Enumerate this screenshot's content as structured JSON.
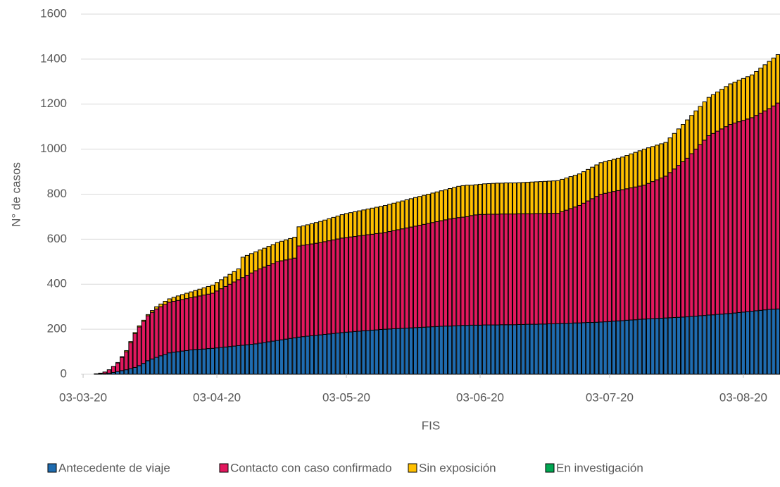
{
  "chart_data": {
    "type": "stacked_bar",
    "xlabel": "FIS",
    "ylabel": "N° de casos",
    "categories": [
      "03-03-20",
      null,
      null,
      null,
      null,
      null,
      null,
      null,
      null,
      null,
      null,
      null,
      null,
      null,
      null,
      null,
      null,
      null,
      null,
      null,
      null,
      null,
      null,
      null,
      null,
      null,
      null,
      null,
      null,
      null,
      null,
      "03-04-20",
      null,
      null,
      null,
      null,
      null,
      null,
      null,
      null,
      null,
      null,
      null,
      null,
      null,
      null,
      null,
      null,
      null,
      null,
      null,
      null,
      null,
      null,
      null,
      null,
      null,
      null,
      null,
      null,
      null,
      "03-05-20",
      null,
      null,
      null,
      null,
      null,
      null,
      null,
      null,
      null,
      null,
      null,
      null,
      null,
      null,
      null,
      null,
      null,
      null,
      null,
      null,
      null,
      null,
      null,
      null,
      null,
      null,
      null,
      null,
      null,
      null,
      "03-06-20",
      null,
      null,
      null,
      null,
      null,
      null,
      null,
      null,
      null,
      null,
      null,
      null,
      null,
      null,
      null,
      null,
      null,
      null,
      null,
      null,
      null,
      null,
      null,
      null,
      null,
      null,
      null,
      null,
      null,
      "03-07-20",
      null,
      null,
      null,
      null,
      null,
      null,
      null,
      null,
      null,
      null,
      null,
      null,
      null,
      null,
      null,
      null,
      null,
      null,
      null,
      null,
      null,
      null,
      null,
      null,
      null,
      null,
      null,
      null,
      null,
      null,
      "03-08-20",
      null,
      null,
      null,
      null,
      null,
      null,
      null,
      null
    ],
    "series": [
      {
        "name": "Antecedente de viaje",
        "color": "#1f6cb0",
        "values": [
          0,
          0,
          0,
          1,
          2,
          3,
          5,
          8,
          12,
          16,
          20,
          25,
          30,
          38,
          48,
          60,
          68,
          75,
          82,
          88,
          95,
          98,
          100,
          103,
          105,
          108,
          110,
          111,
          112,
          114,
          115,
          117,
          119,
          121,
          123,
          125,
          127,
          129,
          131,
          133,
          135,
          138,
          141,
          144,
          147,
          150,
          153,
          156,
          159,
          162,
          165,
          167,
          169,
          171,
          173,
          175,
          177,
          179,
          181,
          183,
          185,
          187,
          188,
          190,
          191,
          193,
          194,
          196,
          197,
          199,
          200,
          201,
          202,
          203,
          204,
          205,
          206,
          207,
          208,
          209,
          210,
          211,
          212,
          213,
          214,
          214,
          215,
          216,
          217,
          217,
          218,
          218,
          218,
          219,
          219,
          219,
          219,
          220,
          220,
          220,
          220,
          221,
          221,
          222,
          222,
          222,
          223,
          223,
          224,
          224,
          225,
          226,
          226,
          227,
          228,
          228,
          229,
          230,
          230,
          231,
          232,
          233,
          234,
          236,
          237,
          238,
          240,
          241,
          242,
          244,
          245,
          246,
          247,
          248,
          249,
          250,
          251,
          252,
          253,
          254,
          255,
          257,
          258,
          260,
          261,
          263,
          264,
          266,
          267,
          269,
          270,
          272,
          274,
          276,
          278,
          280,
          282,
          284,
          286,
          288,
          289,
          290
        ]
      },
      {
        "name": "Contacto con caso confirmado",
        "color": "#e2185e",
        "values": [
          0,
          0,
          0,
          1,
          3,
          7,
          15,
          27,
          38,
          59,
          80,
          115,
          150,
          172,
          187,
          200,
          207,
          215,
          218,
          222,
          225,
          226,
          228,
          229,
          231,
          232,
          234,
          237,
          240,
          242,
          245,
          253,
          261,
          269,
          277,
          285,
          293,
          301,
          309,
          317,
          325,
          330,
          335,
          340,
          345,
          350,
          351,
          352,
          353,
          354,
          405,
          406,
          407,
          408,
          409,
          410,
          412,
          414,
          416,
          418,
          420,
          420,
          422,
          422,
          424,
          424,
          426,
          426,
          428,
          428,
          430,
          433,
          436,
          439,
          442,
          445,
          448,
          451,
          454,
          457,
          460,
          463,
          466,
          469,
          472,
          476,
          478,
          480,
          481,
          483,
          487,
          490,
          492,
          491,
          492,
          492,
          492,
          492,
          492,
          492,
          492,
          492,
          492,
          491,
          491,
          492,
          491,
          491,
          491,
          491,
          490,
          496,
          503,
          509,
          515,
          522,
          531,
          540,
          550,
          559,
          568,
          571,
          574,
          576,
          579,
          582,
          584,
          587,
          590,
          592,
          595,
          602,
          609,
          616,
          623,
          630,
          645,
          660,
          675,
          690,
          705,
          723,
          742,
          760,
          779,
          797,
          806,
          814,
          823,
          831,
          840,
          844,
          848,
          852,
          856,
          860,
          868,
          876,
          884,
          892,
          903,
          915
        ]
      },
      {
        "name": "Sin exposición",
        "color": "#ffc000",
        "values": [
          0,
          0,
          0,
          0,
          0,
          0,
          0,
          0,
          2,
          3,
          5,
          5,
          5,
          5,
          5,
          5,
          8,
          10,
          12,
          14,
          15,
          18,
          20,
          22,
          24,
          26,
          28,
          30,
          32,
          34,
          36,
          38,
          40,
          42,
          44,
          46,
          48,
          90,
          88,
          86,
          84,
          84,
          84,
          84,
          84,
          85,
          87,
          89,
          91,
          93,
          85,
          86,
          88,
          90,
          92,
          94,
          96,
          98,
          100,
          102,
          104,
          107,
          108,
          110,
          111,
          113,
          114,
          116,
          117,
          119,
          120,
          121,
          122,
          123,
          124,
          125,
          126,
          127,
          128,
          129,
          130,
          131,
          132,
          133,
          134,
          135,
          137,
          139,
          140,
          140,
          135,
          134,
          134,
          136,
          136,
          137,
          138,
          137,
          138,
          138,
          138,
          138,
          139,
          140,
          141,
          141,
          142,
          143,
          143,
          144,
          145,
          144,
          143,
          142,
          141,
          140,
          140,
          140,
          140,
          140,
          140,
          141,
          142,
          143,
          144,
          145,
          148,
          151,
          154,
          157,
          160,
          158,
          156,
          154,
          152,
          150,
          154,
          158,
          162,
          166,
          170,
          170,
          170,
          170,
          170,
          170,
          172,
          174,
          176,
          178,
          180,
          182,
          184,
          186,
          188,
          190,
          195,
          200,
          205,
          210,
          213,
          215
        ]
      },
      {
        "name": "En investigación",
        "color": "#00a651",
        "values": [
          0,
          0,
          0,
          0,
          0,
          0,
          0,
          0,
          0,
          0,
          0,
          0,
          0,
          0,
          0,
          0,
          0,
          0,
          0,
          0,
          0,
          0,
          0,
          0,
          0,
          0,
          0,
          0,
          0,
          0,
          0,
          0,
          0,
          0,
          0,
          0,
          0,
          0,
          0,
          0,
          0,
          0,
          0,
          0,
          0,
          0,
          0,
          0,
          0,
          0,
          0,
          0,
          0,
          0,
          0,
          0,
          0,
          0,
          0,
          0,
          0,
          0,
          0,
          0,
          0,
          0,
          0,
          0,
          0,
          0,
          0,
          0,
          0,
          0,
          0,
          0,
          0,
          0,
          0,
          0,
          0,
          0,
          0,
          0,
          0,
          0,
          0,
          0,
          0,
          0,
          0,
          0,
          0,
          0,
          0,
          0,
          0,
          0,
          0,
          0,
          0,
          0,
          0,
          0,
          0,
          0,
          0,
          0,
          0,
          0,
          0,
          0,
          0,
          0,
          0,
          0,
          0,
          0,
          0,
          0,
          0,
          0,
          0,
          0,
          0,
          0,
          0,
          0,
          0,
          0,
          0,
          0,
          0,
          0,
          0,
          0,
          0,
          0,
          0,
          0,
          0,
          0,
          0,
          0,
          0,
          0,
          0,
          0,
          0,
          0,
          0,
          0,
          0,
          0,
          0,
          0,
          0,
          0,
          0,
          0,
          0,
          0
        ]
      }
    ],
    "ylim": [
      0,
      1600
    ],
    "yticks": [
      0,
      200,
      400,
      600,
      800,
      1000,
      1200,
      1400,
      1600
    ],
    "grid": true,
    "legend": "bottom"
  }
}
